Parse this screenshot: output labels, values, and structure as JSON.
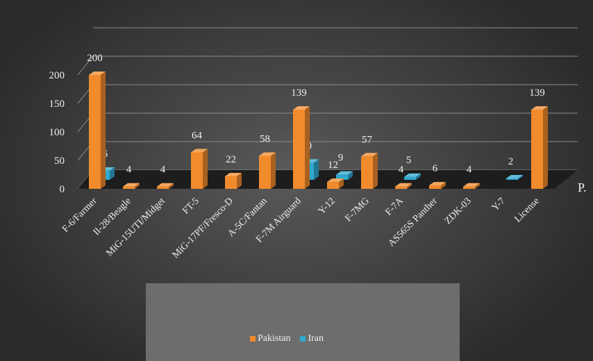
{
  "chart_data": {
    "type": "bar",
    "categories": [
      "F-6/Farmer",
      "Il-28/Beagle",
      "MiG-15UTI/Midget",
      "FT-5",
      "MiG-17PF/Fresco-D",
      "A-5C/Fantan",
      "F-7M Airguard",
      "Y-12",
      "F-7MG",
      "F-7A",
      "AS565S Panther",
      "ZDK-03",
      "Y-7",
      "License"
    ],
    "series": [
      {
        "name": "Pakistan",
        "color": "#f28b2c",
        "values": [
          200,
          4,
          4,
          64,
          22,
          58,
          139,
          12,
          57,
          4,
          6,
          4,
          null,
          139
        ]
      },
      {
        "name": "Iran",
        "color": "#2fa8cf",
        "values": [
          16,
          null,
          null,
          null,
          null,
          null,
          30,
          9,
          null,
          5,
          null,
          null,
          2,
          null
        ]
      }
    ],
    "y_ticks": [
      "0",
      "50",
      "100",
      "150",
      "200"
    ],
    "ylim": [
      0,
      200
    ],
    "grid": true,
    "legend_position": "bottom",
    "truncated_axis_label": "P."
  }
}
